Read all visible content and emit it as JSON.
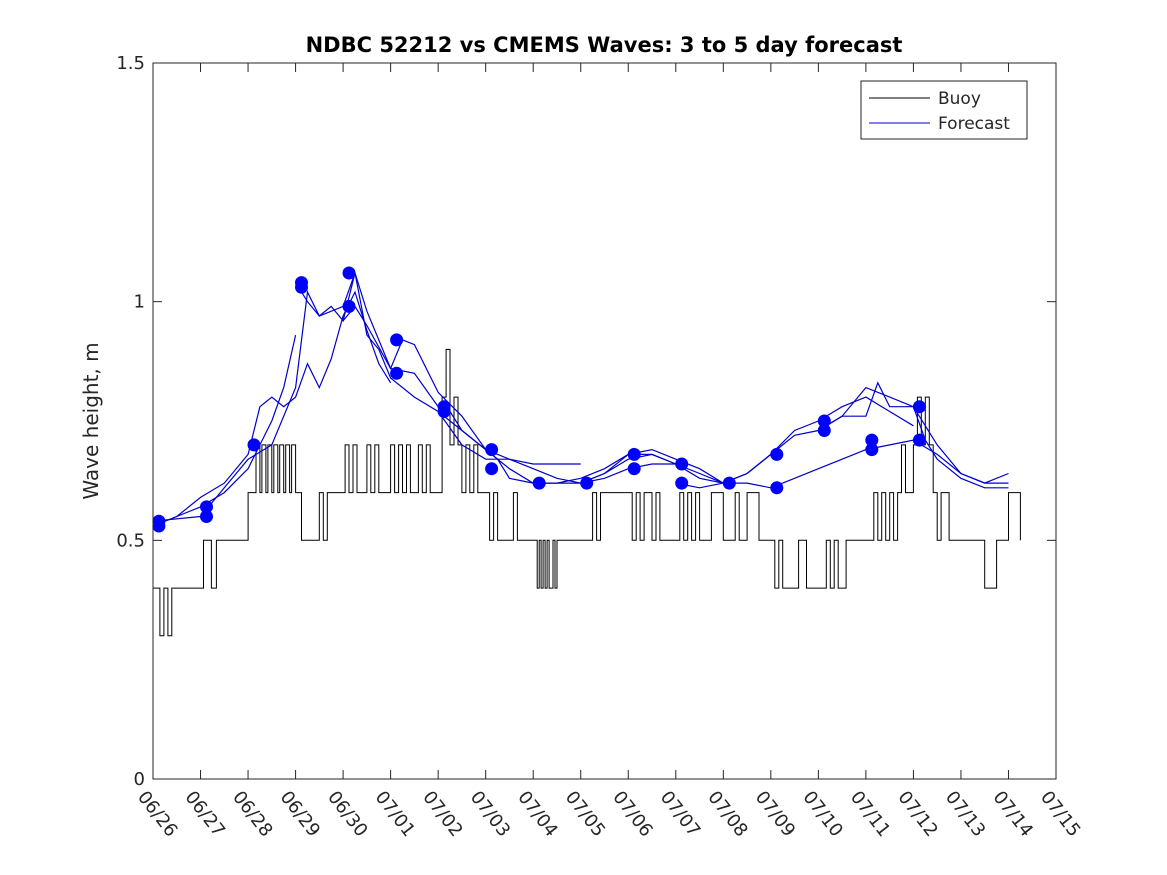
{
  "chart_data": {
    "type": "line",
    "title": "NDBC 52212 vs CMEMS Waves: 3 to 5 day forecast",
    "xlabel": "",
    "ylabel": "Wave height, m",
    "ylim": [
      0,
      1.5
    ],
    "yticks": [
      "0",
      "0.5",
      "1",
      "1.5"
    ],
    "xlim": [
      "06/26",
      "07/15"
    ],
    "xticks": [
      "06/26",
      "06/27",
      "06/28",
      "06/29",
      "06/30",
      "07/01",
      "07/02",
      "07/03",
      "07/04",
      "07/05",
      "07/06",
      "07/07",
      "07/08",
      "07/09",
      "07/10",
      "07/11",
      "07/12",
      "07/13",
      "07/14",
      "07/15"
    ],
    "legend_position": "top-right",
    "grid": false,
    "legend": [
      {
        "label": "Buoy",
        "color": "#000000"
      },
      {
        "label": "Forecast",
        "color": "#0000cc"
      }
    ],
    "buoy": {
      "name": "Buoy",
      "color": "#000000",
      "x": [
        "06/26 00:00",
        "06/26 03:00",
        "06/26 03:30",
        "06/26 05:00",
        "06/26 05:30",
        "06/26 07:00",
        "06/26 07:30",
        "06/26 09:00",
        "06/26 09:30",
        "06/26 12:00",
        "06/27 00:00",
        "06/27 01:00",
        "06/27 01:30",
        "06/27 05:00",
        "06/27 05:30",
        "06/27 08:00",
        "06/27 09:00",
        "06/27 10:00",
        "06/27 12:00",
        "06/28 00:00",
        "06/28 02:00",
        "06/28 04:00",
        "06/28 06:00",
        "06/28 07:00",
        "06/28 09:00",
        "06/28 10:00",
        "06/28 12:00",
        "06/28 13:00",
        "06/28 15:00",
        "06/28 16:00",
        "06/28 18:00",
        "06/28 19:00",
        "06/28 21:00",
        "06/28 22:00",
        "06/29 00:00",
        "06/29 01:00",
        "06/29 03:00",
        "06/29 12:00",
        "06/29 13:00",
        "06/29 14:00",
        "06/29 16:00",
        "06/29 22:00",
        "06/30 00:00",
        "06/30 01:00",
        "06/30 03:00",
        "06/30 05:00",
        "06/30 07:00",
        "06/30 12:00",
        "06/30 14:00",
        "06/30 16:00",
        "06/30 18:00",
        "07/01 00:00",
        "07/01 02:00",
        "07/01 04:00",
        "07/01 06:00",
        "07/01 08:00",
        "07/01 10:00",
        "07/01 12:00",
        "07/01 14:00",
        "07/01 16:00",
        "07/01 18:00",
        "07/01 20:00",
        "07/02 00:00",
        "07/02 02:00",
        "07/02 04:00",
        "07/02 06:00",
        "07/02 08:00",
        "07/02 10:00",
        "07/02 12:00",
        "07/02 14:00",
        "07/02 16:00",
        "07/02 18:00",
        "07/02 20:00",
        "07/03 00:00",
        "07/03 02:00",
        "07/03 04:00",
        "07/03 06:00",
        "07/03 12:00",
        "07/03 14:00",
        "07/03 16:00",
        "07/03 18:00",
        "07/04 00:00",
        "07/04 02:00",
        "07/04 03:00",
        "07/04 04:00",
        "07/04 05:00",
        "07/04 06:00",
        "07/04 07:00",
        "07/04 08:00",
        "07/04 10:00",
        "07/04 11:00",
        "07/04 12:00",
        "07/04 14:00",
        "07/04 16:00",
        "07/04 18:00",
        "07/05 00:00",
        "07/05 06:00",
        "07/05 08:00",
        "07/05 10:00",
        "07/05 12:00",
        "07/06 00:00",
        "07/06 02:00",
        "07/06 04:00",
        "07/06 06:00",
        "07/06 08:00",
        "07/06 12:00",
        "07/06 14:00",
        "07/06 16:00",
        "07/06 18:00",
        "07/07 00:00",
        "07/07 02:00",
        "07/07 04:00",
        "07/07 06:00",
        "07/07 08:00",
        "07/07 10:00",
        "07/07 12:00",
        "07/07 16:00",
        "07/07 18:00",
        "07/08 00:00",
        "07/08 04:00",
        "07/08 06:00",
        "07/08 08:00",
        "07/08 12:00",
        "07/08 18:00",
        "07/09 00:00",
        "07/09 02:00",
        "07/09 04:00",
        "07/09 06:00",
        "07/09 10:00",
        "07/09 14:00",
        "07/09 18:00",
        "07/10 00:00",
        "07/10 02:00",
        "07/10 04:00",
        "07/10 06:00",
        "07/10 08:00",
        "07/10 10:00",
        "07/10 14:00",
        "07/10 18:00",
        "07/11 00:00",
        "07/11 02:00",
        "07/11 04:00",
        "07/11 06:00",
        "07/11 08:00",
        "07/11 10:00",
        "07/11 12:00",
        "07/11 14:00",
        "07/11 16:00",
        "07/11 18:00",
        "07/11 20:00",
        "07/12 00:00",
        "07/12 02:00",
        "07/12 04:00",
        "07/12 06:00",
        "07/12 08:00",
        "07/12 10:00",
        "07/12 12:00",
        "07/12 14:00",
        "07/12 18:00",
        "07/13 00:00",
        "07/13 02:00",
        "07/13 04:00",
        "07/13 12:00",
        "07/13 18:00",
        "07/14 00:00",
        "07/14 06:00"
      ],
      "y": [
        0.4,
        0.4,
        0.3,
        0.3,
        0.4,
        0.4,
        0.3,
        0.3,
        0.4,
        0.4,
        0.4,
        0.4,
        0.5,
        0.5,
        0.4,
        0.5,
        0.5,
        0.5,
        0.5,
        0.6,
        0.6,
        0.7,
        0.6,
        0.7,
        0.6,
        0.7,
        0.6,
        0.7,
        0.6,
        0.7,
        0.6,
        0.7,
        0.6,
        0.7,
        0.6,
        0.6,
        0.5,
        0.6,
        0.6,
        0.5,
        0.6,
        0.6,
        0.6,
        0.7,
        0.6,
        0.7,
        0.6,
        0.7,
        0.6,
        0.7,
        0.6,
        0.7,
        0.6,
        0.7,
        0.6,
        0.7,
        0.6,
        0.6,
        0.7,
        0.6,
        0.7,
        0.6,
        0.6,
        0.8,
        0.9,
        0.7,
        0.8,
        0.7,
        0.6,
        0.7,
        0.6,
        0.7,
        0.6,
        0.6,
        0.5,
        0.6,
        0.5,
        0.5,
        0.6,
        0.5,
        0.5,
        0.5,
        0.4,
        0.5,
        0.4,
        0.5,
        0.4,
        0.5,
        0.4,
        0.5,
        0.4,
        0.5,
        0.5,
        0.5,
        0.5,
        0.5,
        0.6,
        0.5,
        0.6,
        0.6,
        0.6,
        0.5,
        0.6,
        0.5,
        0.6,
        0.5,
        0.6,
        0.5,
        0.5,
        0.5,
        0.6,
        0.5,
        0.6,
        0.5,
        0.6,
        0.5,
        0.5,
        0.6,
        0.5,
        0.5,
        0.6,
        0.5,
        0.6,
        0.5,
        0.5,
        0.4,
        0.5,
        0.4,
        0.4,
        0.5,
        0.4,
        0.4,
        0.4,
        0.5,
        0.4,
        0.5,
        0.4,
        0.5,
        0.5,
        0.5,
        0.5,
        0.6,
        0.5,
        0.6,
        0.5,
        0.6,
        0.5,
        0.6,
        0.7,
        0.6,
        0.7,
        0.8,
        0.7,
        0.8,
        0.7,
        0.6,
        0.5,
        0.6,
        0.5,
        0.5,
        0.5,
        0.5,
        0.4,
        0.5,
        0.6,
        0.5
      ]
    },
    "forecasts": [
      {
        "color": "#0000cc",
        "x": [
          "06/26 00:00",
          "06/26 12:00",
          "06/27 00:00",
          "06/27 12:00",
          "06/28 00:00",
          "06/28 06:00",
          "06/28 12:00",
          "06/28 18:00",
          "06/29 00:00"
        ],
        "y": [
          0.53,
          0.55,
          0.57,
          0.6,
          0.65,
          0.7,
          0.75,
          0.82,
          0.93
        ]
      },
      {
        "color": "#0000cc",
        "x": [
          "06/26 00:00",
          "06/26 12:00",
          "06/27 00:00",
          "06/27 12:00",
          "06/28 00:00",
          "06/28 06:00",
          "06/28 12:00",
          "06/28 18:00",
          "06/29 00:00",
          "06/29 06:00",
          "06/29 12:00",
          "06/29 18:00",
          "06/30 00:00",
          "06/30 06:00",
          "06/30 12:00",
          "06/30 18:00",
          "07/01 00:00"
        ],
        "y": [
          0.53,
          0.55,
          0.59,
          0.62,
          0.68,
          0.78,
          0.8,
          0.78,
          0.8,
          0.87,
          0.82,
          0.88,
          0.97,
          1.02,
          0.94,
          0.87,
          0.83
        ]
      },
      {
        "color": "#0000cc",
        "x": [
          "06/26 00:00",
          "06/27 00:00",
          "06/27 12:00",
          "06/28 00:00",
          "06/28 12:00",
          "06/29 00:00",
          "06/29 06:00",
          "06/29 12:00",
          "06/29 18:00",
          "06/30 00:00",
          "06/30 06:00",
          "06/30 12:00",
          "06/30 18:00",
          "07/01 00:00",
          "07/01 12:00",
          "07/02 00:00",
          "07/02 12:00",
          "07/03 00:00",
          "07/03 12:00",
          "07/04 00:00",
          "07/04 12:00",
          "07/05 00:00"
        ],
        "y": [
          0.54,
          0.55,
          0.61,
          0.67,
          0.7,
          0.82,
          1.02,
          0.97,
          0.99,
          0.96,
          1.06,
          0.93,
          0.9,
          0.84,
          0.8,
          0.77,
          0.7,
          0.67,
          0.67,
          0.66,
          0.66,
          0.66
        ]
      },
      {
        "color": "#0000cc",
        "x": [
          "06/29 00:00",
          "06/29 06:00",
          "06/29 12:00",
          "06/30 00:00",
          "06/30 06:00",
          "06/30 12:00",
          "07/01 00:00",
          "07/01 12:00",
          "07/02 00:00",
          "07/02 06:00",
          "07/02 12:00",
          "07/03 00:00",
          "07/03 12:00",
          "07/04 00:00",
          "07/04 12:00",
          "07/05 00:00",
          "07/05 12:00",
          "07/06 00:00",
          "07/06 12:00",
          "07/07 00:00"
        ],
        "y": [
          1.04,
          1.0,
          0.97,
          0.99,
          1.06,
          0.98,
          0.86,
          0.85,
          0.78,
          0.77,
          0.73,
          0.69,
          0.65,
          0.62,
          0.62,
          0.63,
          0.65,
          0.68,
          0.68,
          0.66
        ]
      },
      {
        "color": "#0000cc",
        "x": [
          "06/30 00:00",
          "06/30 06:00",
          "06/30 12:00",
          "07/01 00:00",
          "07/01 06:00",
          "07/01 12:00",
          "07/02 00:00",
          "07/02 12:00",
          "07/03 00:00",
          "07/03 06:00",
          "07/03 12:00",
          "07/04 00:00",
          "07/04 12:00",
          "07/05 00:00",
          "07/05 12:00",
          "07/06 00:00",
          "07/06 12:00",
          "07/07 00:00",
          "07/07 12:00",
          "07/08 00:00"
        ],
        "y": [
          0.96,
          0.99,
          0.95,
          0.86,
          0.92,
          0.91,
          0.81,
          0.76,
          0.69,
          0.67,
          0.63,
          0.62,
          0.62,
          0.62,
          0.63,
          0.65,
          0.66,
          0.66,
          0.63,
          0.62
        ]
      },
      {
        "color": "#0000cc",
        "x": [
          "07/02 00:00",
          "07/02 12:00",
          "07/03 00:00",
          "07/03 12:00",
          "07/04 00:00",
          "07/04 12:00",
          "07/05 00:00",
          "07/05 12:00",
          "07/06 00:00",
          "07/06 12:00",
          "07/07 00:00",
          "07/07 12:00",
          "07/08 00:00",
          "07/08 12:00",
          "07/09 00:00"
        ],
        "y": [
          0.77,
          0.73,
          0.69,
          0.67,
          0.65,
          0.63,
          0.62,
          0.64,
          0.68,
          0.69,
          0.67,
          0.65,
          0.62,
          0.62,
          0.61
        ]
      },
      {
        "color": "#0000cc",
        "x": [
          "07/05 00:00",
          "07/05 12:00",
          "07/06 00:00",
          "07/06 12:00",
          "07/07 00:00",
          "07/07 12:00",
          "07/08 00:00",
          "07/08 12:00",
          "07/09 00:00",
          "07/09 12:00",
          "07/10 00:00",
          "07/10 12:00",
          "07/11 00:00",
          "07/11 12:00",
          "07/12 00:00"
        ],
        "y": [
          0.62,
          0.64,
          0.67,
          0.68,
          0.66,
          0.64,
          0.62,
          0.64,
          0.68,
          0.73,
          0.75,
          0.78,
          0.8,
          0.77,
          0.74
        ]
      },
      {
        "color": "#0000cc",
        "x": [
          "07/07 00:00",
          "07/07 12:00",
          "07/08 00:00",
          "07/08 12:00",
          "07/09 00:00",
          "07/09 12:00",
          "07/10 00:00",
          "07/10 12:00",
          "07/11 00:00",
          "07/11 12:00",
          "07/12 00:00",
          "07/12 12:00",
          "07/13 00:00",
          "07/13 12:00",
          "07/14 00:00"
        ],
        "y": [
          0.62,
          0.61,
          0.62,
          0.64,
          0.68,
          0.72,
          0.73,
          0.76,
          0.82,
          0.8,
          0.78,
          0.7,
          0.64,
          0.62,
          0.62
        ]
      },
      {
        "color": "#0000cc",
        "x": [
          "07/09 00:00",
          "07/09 12:00",
          "07/10 00:00",
          "07/10 12:00",
          "07/11 00:00",
          "07/11 12:00",
          "07/12 00:00",
          "07/12 12:00",
          "07/13 00:00",
          "07/13 12:00",
          "07/14 00:00"
        ],
        "y": [
          0.61,
          0.63,
          0.65,
          0.67,
          0.69,
          0.7,
          0.71,
          0.68,
          0.64,
          0.62,
          0.64
        ]
      },
      {
        "color": "#0000cc",
        "x": [
          "07/10 00:00",
          "07/10 12:00",
          "07/11 00:00",
          "07/11 06:00",
          "07/11 12:00",
          "07/12 00:00",
          "07/12 06:00",
          "07/12 12:00",
          "07/13 00:00",
          "07/13 12:00",
          "07/14 00:00"
        ],
        "y": [
          0.73,
          0.76,
          0.76,
          0.83,
          0.78,
          0.78,
          0.71,
          0.67,
          0.63,
          0.61,
          0.61
        ]
      }
    ],
    "markers": {
      "color": "#0000ff",
      "x": [
        "06/26 03:00",
        "06/26 03:00",
        "06/27 03:00",
        "06/27 03:00",
        "06/28 03:00",
        "06/29 03:00",
        "06/29 03:00",
        "06/30 03:00",
        "06/30 03:00",
        "07/01 03:00",
        "07/01 03:00",
        "07/02 03:00",
        "07/02 03:00",
        "07/03 03:00",
        "07/03 03:00",
        "07/04 03:00",
        "07/05 03:00",
        "07/06 03:00",
        "07/06 03:00",
        "07/07 03:00",
        "07/07 03:00",
        "07/08 03:00",
        "07/09 03:00",
        "07/09 03:00",
        "07/10 03:00",
        "07/10 03:00",
        "07/11 03:00",
        "07/11 03:00",
        "07/12 03:00",
        "07/12 03:00"
      ],
      "y": [
        0.54,
        0.53,
        0.57,
        0.55,
        0.7,
        1.04,
        1.03,
        1.06,
        0.99,
        0.92,
        0.85,
        0.78,
        0.77,
        0.69,
        0.65,
        0.62,
        0.62,
        0.68,
        0.65,
        0.66,
        0.62,
        0.62,
        0.68,
        0.61,
        0.75,
        0.73,
        0.71,
        0.69,
        0.78,
        0.71
      ]
    }
  }
}
